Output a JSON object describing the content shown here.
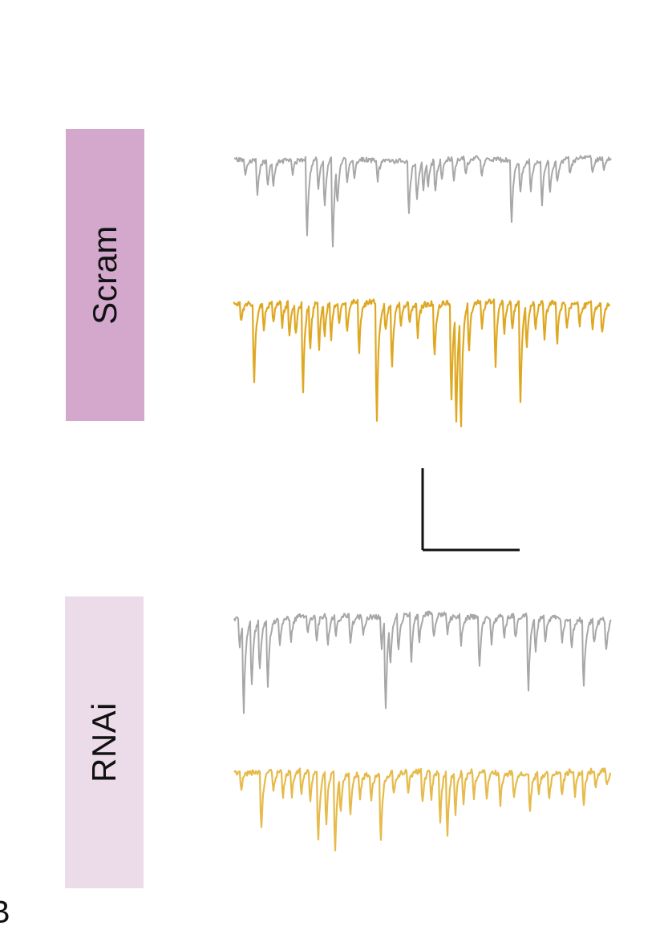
{
  "groups": {
    "scram": {
      "label": "Scram",
      "color": "#d3a8cc"
    },
    "rnai": {
      "label": "RNAi",
      "color": "#ecdbe9"
    }
  },
  "traces": {
    "control_color": "#a7a7a7",
    "treated_color": "#dfa823",
    "treated_color_light": "#e6bb4b",
    "items": [
      {
        "group": "scram",
        "condition": "control",
        "icon": "current-trace-gray"
      },
      {
        "group": "scram",
        "condition": "treated",
        "icon": "current-trace-gold"
      },
      {
        "group": "rnai",
        "condition": "control",
        "icon": "current-trace-gray"
      },
      {
        "group": "rnai",
        "condition": "treated",
        "icon": "current-trace-gold"
      }
    ]
  },
  "scale_bar": {
    "icon": "scale-bar-icon",
    "color": "#111111"
  },
  "panel_letter": "B"
}
